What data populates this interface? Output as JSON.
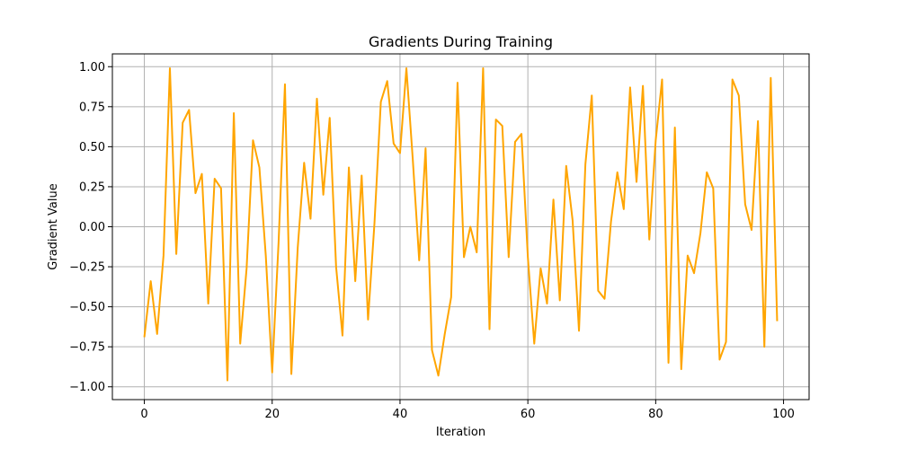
{
  "chart_data": {
    "type": "line",
    "title": "Gradients During Training",
    "xlabel": "Iteration",
    "ylabel": "Gradient Value",
    "xlim": [
      -5,
      104
    ],
    "ylim": [
      -1.08,
      1.08
    ],
    "xticks": [
      0,
      20,
      40,
      60,
      80,
      100
    ],
    "yticks": [
      -1.0,
      -0.75,
      -0.5,
      -0.25,
      0.0,
      0.25,
      0.5,
      0.75,
      1.0
    ],
    "xtick_labels": [
      "0",
      "20",
      "40",
      "60",
      "80",
      "100"
    ],
    "ytick_labels": [
      "−1.00",
      "−0.75",
      "−0.50",
      "−0.25",
      "0.00",
      "0.25",
      "0.50",
      "0.75",
      "1.00"
    ],
    "grid": true,
    "line_color": "#ffa500",
    "grid_color": "#b0b0b0",
    "series": [
      {
        "x": [
          0,
          1,
          2,
          3,
          4,
          5,
          6,
          7,
          8,
          9,
          10,
          11,
          12,
          13,
          14,
          15,
          16,
          17,
          18,
          19,
          20,
          21,
          22,
          23,
          24,
          25,
          26,
          27,
          28,
          29,
          30,
          31,
          32,
          33,
          34,
          35,
          36,
          37,
          38,
          39,
          40,
          41,
          42,
          43,
          44,
          45,
          46,
          47,
          48,
          49,
          50,
          51,
          52,
          53,
          54,
          55,
          56,
          57,
          58,
          59,
          60,
          61,
          62,
          63,
          64,
          65,
          66,
          67,
          68,
          69,
          70,
          71,
          72,
          73,
          74,
          75,
          76,
          77,
          78,
          79,
          80,
          81,
          82,
          83,
          84,
          85,
          86,
          87,
          88,
          89,
          90,
          91,
          92,
          93,
          94,
          95,
          96,
          97,
          98,
          99
        ],
        "values": [
          -0.69,
          -0.34,
          -0.67,
          -0.18,
          0.99,
          -0.17,
          0.65,
          0.73,
          0.21,
          0.33,
          -0.48,
          0.3,
          0.24,
          -0.96,
          0.71,
          -0.73,
          -0.26,
          0.54,
          0.37,
          -0.18,
          -0.91,
          -0.1,
          0.89,
          -0.92,
          -0.13,
          0.4,
          0.05,
          0.8,
          0.2,
          0.68,
          -0.25,
          -0.68,
          0.37,
          -0.34,
          0.32,
          -0.58,
          0.02,
          0.78,
          0.91,
          0.52,
          0.46,
          0.99,
          0.42,
          -0.21,
          0.49,
          -0.77,
          -0.93,
          -0.67,
          -0.44,
          0.9,
          -0.19,
          0.0,
          -0.16,
          0.99,
          -0.64,
          0.67,
          0.63,
          -0.19,
          0.53,
          0.58,
          -0.19,
          -0.73,
          -0.26,
          -0.48,
          0.17,
          -0.46,
          0.38,
          0.04,
          -0.65,
          0.39,
          0.82,
          -0.4,
          -0.45,
          0.03,
          0.34,
          0.11,
          0.87,
          0.28,
          0.88,
          -0.08,
          0.54,
          0.92,
          -0.85,
          0.62,
          -0.89,
          -0.18,
          -0.29,
          -0.04,
          0.34,
          0.24,
          -0.83,
          -0.72,
          0.92,
          0.82,
          0.14,
          -0.02,
          0.66,
          -0.75,
          0.93,
          -0.59
        ]
      }
    ]
  }
}
